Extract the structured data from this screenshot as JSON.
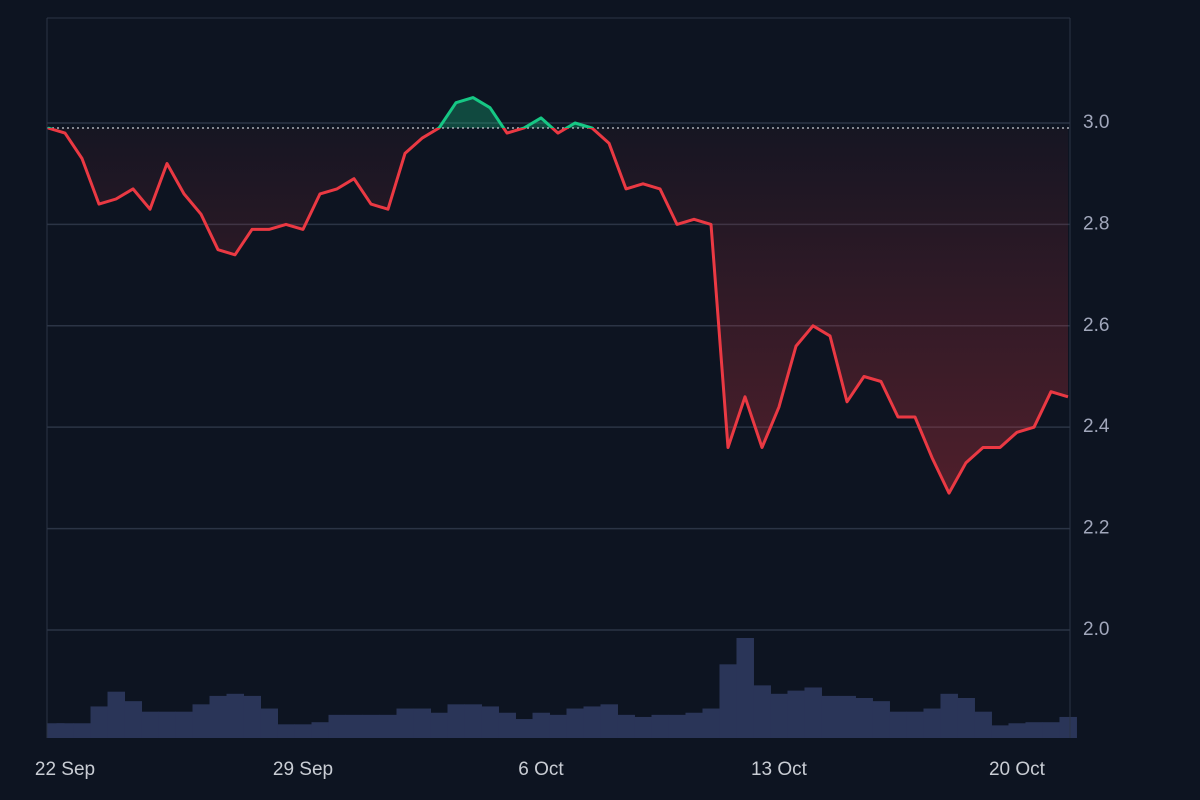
{
  "chart_data": {
    "type": "line",
    "x": [
      -0.5,
      0,
      0.5,
      1,
      1.5,
      2,
      2.5,
      3,
      3.5,
      4,
      4.5,
      5,
      5.5,
      6,
      6.5,
      7,
      7.5,
      8,
      8.5,
      9,
      9.5,
      10,
      10.5,
      11,
      11.5,
      12,
      12.5,
      13,
      13.5,
      14,
      14.5,
      15,
      15.5,
      16,
      16.5,
      17,
      17.5,
      18,
      18.5,
      19,
      19.5,
      20,
      20.5,
      21,
      21.5,
      22,
      22.5,
      23,
      23.5,
      24,
      24.5,
      25,
      25.5,
      26,
      26.5,
      27,
      27.5,
      28,
      28.5,
      29,
      29.5
    ],
    "series": [
      {
        "values": [
          2.99,
          2.98,
          2.93,
          2.84,
          2.85,
          2.87,
          2.83,
          2.92,
          2.86,
          2.82,
          2.75,
          2.74,
          2.79,
          2.79,
          2.8,
          2.79,
          2.86,
          2.87,
          2.89,
          2.84,
          2.83,
          2.94,
          2.97,
          2.99,
          3.04,
          3.05,
          3.03,
          2.98,
          2.99,
          3.01,
          2.98,
          3.0,
          2.99,
          2.96,
          2.87,
          2.88,
          2.87,
          2.8,
          2.81,
          2.8,
          2.36,
          2.46,
          2.36,
          2.44,
          2.56,
          2.6,
          2.58,
          2.45,
          2.5,
          2.49,
          2.42,
          2.42,
          2.34,
          2.27,
          2.33,
          2.36,
          2.36,
          2.39,
          2.4,
          2.47,
          2.46
        ]
      }
    ],
    "volume": [
      14,
      14,
      14,
      30,
      44,
      35,
      25,
      25,
      25,
      32,
      40,
      42,
      40,
      28,
      13,
      13,
      15,
      22,
      22,
      22,
      22,
      28,
      28,
      24,
      32,
      32,
      30,
      24,
      18,
      24,
      22,
      28,
      30,
      32,
      22,
      20,
      22,
      22,
      24,
      28,
      70,
      95,
      50,
      42,
      45,
      48,
      40,
      40,
      38,
      35,
      25,
      25,
      28,
      42,
      38,
      25,
      12,
      14,
      15,
      15,
      20
    ],
    "baseline": 2.99,
    "colors": {
      "up": "#16c784",
      "down": "#ea3943",
      "volume": "#2a3558"
    },
    "xlim": [
      -0.53,
      29.56
    ],
    "xticks": [
      {
        "value": 0,
        "label": "22 Sep"
      },
      {
        "value": 7,
        "label": "29 Sep"
      },
      {
        "value": 14,
        "label": "6 Oct"
      },
      {
        "value": 21,
        "label": "13 Oct"
      },
      {
        "value": 28,
        "label": "20 Oct"
      }
    ],
    "ylim": [
      1.787,
      3.207
    ],
    "yticks": [
      {
        "value": 2.0,
        "label": "2.0"
      },
      2.2,
      2.4,
      2.6,
      2.8,
      {
        "value": 3.0,
        "label": "3.0"
      }
    ],
    "grid": true
  }
}
